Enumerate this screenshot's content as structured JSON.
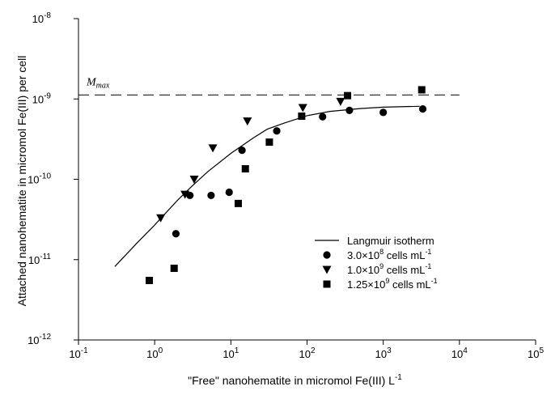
{
  "chart_data": {
    "type": "scatter",
    "title": "",
    "xlabel": "\"Free\" nanohematite in micromol Fe(III) L",
    "xlabel_sup": "-1",
    "ylabel": "Attached nanohematite in micromol Fe(III) per cell",
    "xscale": "log",
    "yscale": "log",
    "xlim": [
      0.1,
      100000
    ],
    "ylim": [
      1e-12,
      1e-08
    ],
    "grid": false,
    "x_ticks": [
      {
        "value": 0.1,
        "base": "10",
        "exp": "-1"
      },
      {
        "value": 1,
        "base": "10",
        "exp": "0"
      },
      {
        "value": 10,
        "base": "10",
        "exp": "1"
      },
      {
        "value": 100,
        "base": "10",
        "exp": "2"
      },
      {
        "value": 1000,
        "base": "10",
        "exp": "3"
      },
      {
        "value": 10000,
        "base": "10",
        "exp": "4"
      },
      {
        "value": 100000,
        "base": "10",
        "exp": "5"
      }
    ],
    "y_ticks": [
      {
        "value": 1e-12,
        "base": "10",
        "exp": "-12"
      },
      {
        "value": 1e-11,
        "base": "10",
        "exp": "-11"
      },
      {
        "value": 1e-10,
        "base": "10",
        "exp": "-10"
      },
      {
        "value": 1e-09,
        "base": "10",
        "exp": "-9"
      },
      {
        "value": 1e-08,
        "base": "10",
        "exp": "-8"
      }
    ],
    "reference_line": {
      "label_main": "M",
      "label_sub": "max",
      "y": 1.12e-09,
      "style": "dashed"
    },
    "legend": {
      "position": "center-right",
      "entries": [
        {
          "marker": "line",
          "text": "Langmuir isotherm"
        },
        {
          "marker": "circle",
          "pre": "3.0×10",
          "sup1": "8",
          "mid": " cells mL",
          "sup2": "-1"
        },
        {
          "marker": "triangle-down",
          "pre": "1.0×10",
          "sup1": "9",
          "mid": " cells mL",
          "sup2": "-1"
        },
        {
          "marker": "square",
          "pre": "1.25×10",
          "sup1": "9",
          "mid": " cells mL",
          "sup2": "-1"
        }
      ]
    },
    "fit": {
      "name": "Langmuir isotherm",
      "x": [
        0.3,
        0.6,
        1,
        2,
        3,
        5,
        10,
        20,
        30,
        50,
        100,
        200,
        500,
        1000,
        3000
      ],
      "y": [
        8.2e-12,
        1.65e-11,
        2.7e-11,
        5.5e-11,
        8e-11,
        1.25e-10,
        2.1e-10,
        3.3e-10,
        4.2e-10,
        5e-10,
        6.2e-10,
        7e-10,
        7.6e-10,
        7.9e-10,
        8.1e-10
      ]
    },
    "series": [
      {
        "marker": "circle",
        "x": [
          1.9,
          2.9,
          5.5,
          9.5,
          14,
          40,
          160,
          360,
          1000,
          3300
        ],
        "y": [
          2.1e-11,
          6.3e-11,
          6.3e-11,
          6.9e-11,
          2.3e-10,
          4e-10,
          6e-10,
          7.2e-10,
          6.8e-10,
          7.5e-10
        ]
      },
      {
        "marker": "triangle-down",
        "x": [
          1.2,
          2.5,
          3.3,
          5.8,
          16.5,
          88,
          275
        ],
        "y": [
          3.3e-11,
          6.5e-11,
          1e-10,
          2.45e-10,
          5.3e-10,
          7.8e-10,
          9.3e-10
        ]
      },
      {
        "marker": "square",
        "x": [
          0.85,
          1.8,
          12.5,
          15.5,
          32,
          85,
          340,
          3200
        ],
        "y": [
          5.5e-12,
          7.8e-12,
          5e-11,
          1.35e-10,
          2.9e-10,
          6.1e-10,
          1.1e-09,
          1.3e-09
        ]
      }
    ]
  }
}
